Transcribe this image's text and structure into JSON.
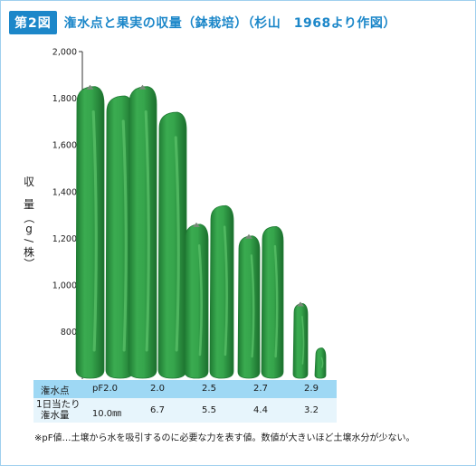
{
  "header": {
    "badge": "第2図",
    "title": "潅水点と果実の収量（鉢栽培）（杉山　1968より作図）"
  },
  "ylabel": {
    "line1": "収",
    "line2": "量",
    "line3": "（",
    "line4": "g",
    "line5": "/",
    "line6": "株",
    "line7": "）"
  },
  "colors": {
    "fruit": "#2e9b45",
    "fruit_dark": "#1f7a33",
    "fruit_light": "#5ec46c",
    "table_header_bg": "#9ed8f4",
    "table_row_bg": "#e7f5fc",
    "title_blue": "#1c87c9"
  },
  "chart_data": {
    "type": "bar",
    "title": "潅水点と果実の収量（鉢栽培）",
    "ylabel": "収量（g/株）",
    "ylim": [
      600,
      2000
    ],
    "yticks": [
      "2,000",
      "1,800",
      "1,600",
      "1,400",
      "1,200",
      "1,000",
      "800"
    ],
    "ytick_values": [
      2000,
      1800,
      1600,
      1400,
      1200,
      1000,
      800
    ],
    "categories": [
      "pF2.0",
      "2.0",
      "2.5",
      "2.7",
      "2.9"
    ],
    "series": [
      {
        "values": [
          1850,
          1850,
          1260,
          1210,
          920
        ]
      },
      {
        "values": [
          1810,
          1740,
          1340,
          1250,
          730
        ]
      }
    ],
    "grid": false
  },
  "table": {
    "row1_label": "潅水点",
    "row2_label_line1": "1日当たり",
    "row2_label_line2": "潅水量",
    "pf_values": [
      "pF2.0",
      "2.0",
      "2.5",
      "2.7",
      "2.9"
    ],
    "water_values": [
      "10.0㎜",
      "6.7",
      "5.5",
      "4.4",
      "3.2"
    ]
  },
  "note": "※pF値…土壌から水を吸引するのに必要な力を表す値。数値が大きいほど土壌水分が少ない。"
}
